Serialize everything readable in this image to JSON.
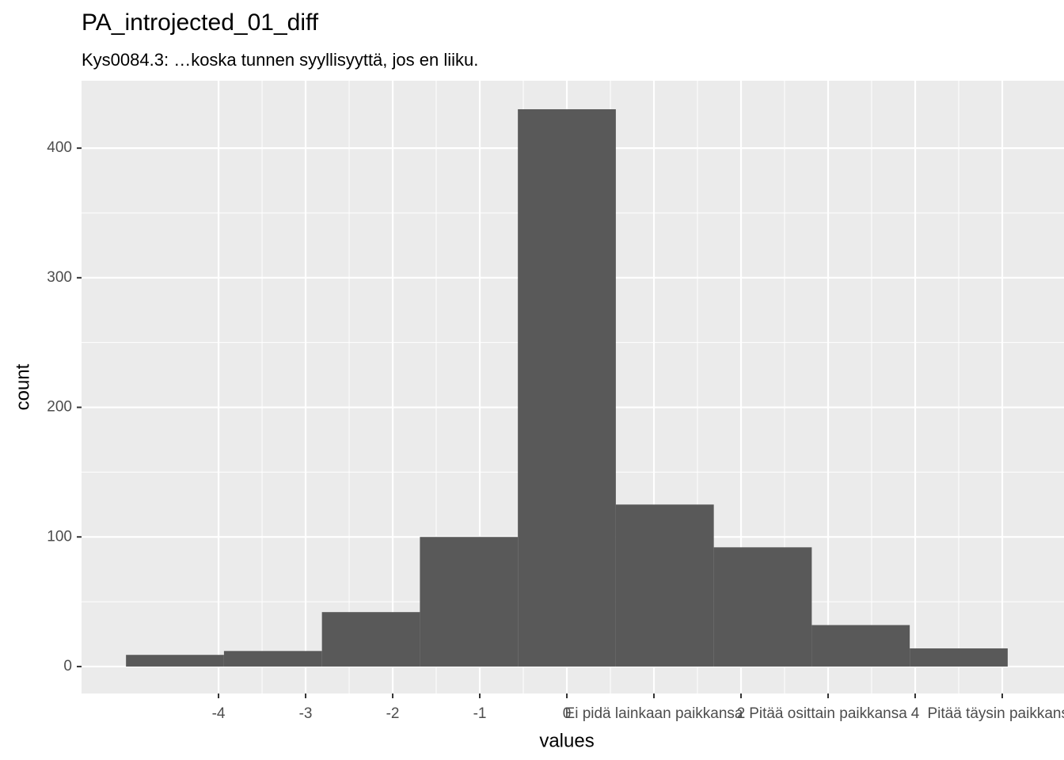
{
  "chart_data": {
    "type": "histogram",
    "title": "PA_introjected_01_diff",
    "subtitle": "Kys0084.3: …koska tunnen syyllisyyttä, jos en liiku.",
    "x_label": "values",
    "y_label": "count",
    "bins": [
      -5.0625,
      -3.9375,
      -2.8125,
      -1.6875,
      -0.5625,
      0.5625,
      1.6875,
      2.8125,
      3.9375,
      5.0625
    ],
    "values": [
      9,
      12,
      42,
      100,
      430,
      125,
      92,
      32,
      14
    ],
    "color": "#595959",
    "xlim": [
      -5.573,
      5.709
    ],
    "ylim": [
      -20.8,
      452
    ],
    "xticks": [
      -4,
      -3,
      -2,
      -1,
      0,
      {
        "value": 1,
        "label": "Ei pidä lainkaan paikkansa"
      },
      2,
      {
        "value": 3,
        "label": "Pitää osittain paikkansa"
      },
      4,
      {
        "value": 5,
        "label": "Pitää täysin paikkansa"
      }
    ],
    "yticks": [
      0,
      100,
      200,
      300,
      400
    ],
    "grid": true
  }
}
